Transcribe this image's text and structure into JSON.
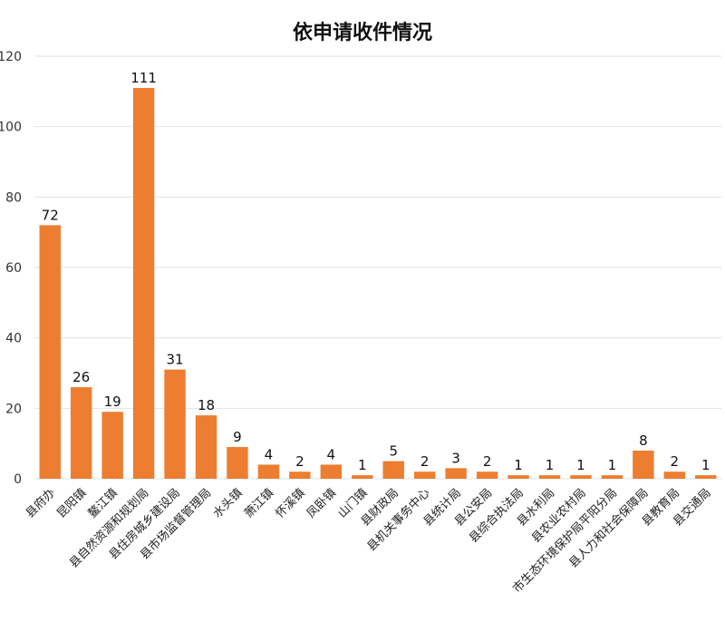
{
  "chart_data": {
    "type": "bar",
    "title": "依申请收件情况",
    "xlabel": "",
    "ylabel": "",
    "ylim": [
      0,
      120
    ],
    "yticks": [
      0,
      20,
      40,
      60,
      80,
      100,
      120
    ],
    "grid": true,
    "bar_color": "#ED7D31",
    "categories": [
      "县府办",
      "昆阳镇",
      "鳌江镇",
      "县自然资源和规划局",
      "县住房城乡建设局",
      "县市场监督管理局",
      "水头镇",
      "萧江镇",
      "怀溪镇",
      "凤卧镇",
      "山门镇",
      "县财政局",
      "县机关事务中心",
      "县统计局",
      "县公安局",
      "县综合执法局",
      "县水利局",
      "县农业农村局",
      "市生态环境保护局平阳分局",
      "县人力和社会保障局",
      "县教育局",
      "县交通局"
    ],
    "values": [
      72,
      26,
      19,
      111,
      31,
      18,
      9,
      4,
      2,
      4,
      1,
      5,
      2,
      3,
      2,
      1,
      1,
      1,
      1,
      8,
      2,
      1
    ]
  }
}
